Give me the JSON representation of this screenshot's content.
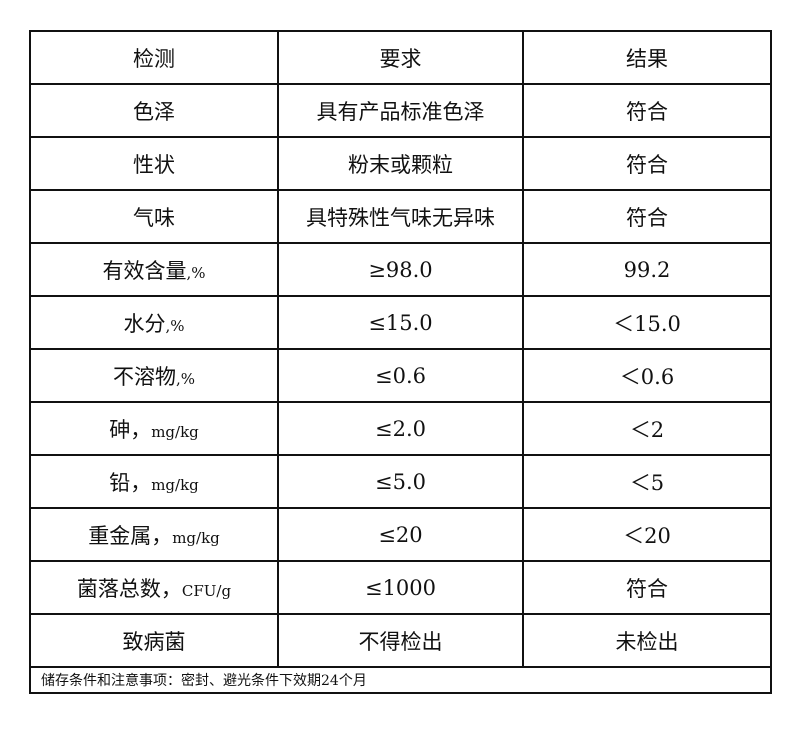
{
  "headers": [
    "检测",
    "要求",
    "结果"
  ],
  "rows": [
    {
      "item": "色泽",
      "unit": "",
      "requirement": "具有产品标准色泽",
      "result": "符合"
    },
    {
      "item": "性状",
      "unit": "",
      "requirement": "粉末或颗粒",
      "result": "符合"
    },
    {
      "item": "气味",
      "unit": "",
      "requirement": "具特殊性气味无异味",
      "result": "符合"
    },
    {
      "item": "有效含量",
      "unit": ",%",
      "requirement": "≥98.0",
      "result": "99.2"
    },
    {
      "item": "水分",
      "unit": ",%",
      "requirement": "≤15.0",
      "result": "＜15.0"
    },
    {
      "item": "不溶物",
      "unit": ",%",
      "requirement": "≤0.6",
      "result": "＜0.6"
    },
    {
      "item": "砷，",
      "unit": "mg/kg",
      "requirement": "≤2.0",
      "result": "＜2"
    },
    {
      "item": "铅，",
      "unit": "mg/kg",
      "requirement": "≤5.0",
      "result": "＜5"
    },
    {
      "item": "重金属，",
      "unit": "mg/kg",
      "requirement": "≤20",
      "result": "＜20"
    },
    {
      "item": "菌落总数，",
      "unit": "CFU/g",
      "requirement": "≤1000",
      "result": "符合"
    },
    {
      "item": "致病菌",
      "unit": "",
      "requirement": "不得检出",
      "result": "未检出"
    }
  ],
  "footer": "储存条件和注意事项：密封、避光条件下效期24个月"
}
